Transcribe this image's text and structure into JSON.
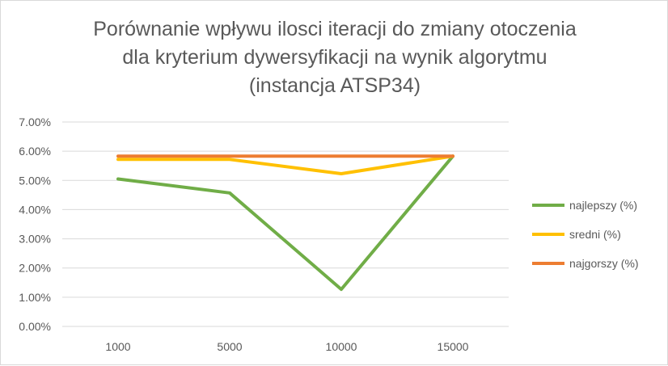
{
  "chart_data": {
    "type": "line",
    "title_lines": [
      "Porównanie wpływu ilosci iteracji do zmiany otoczenia",
      "dla kryterium dywersyfikacji na wynik algorytmu",
      "(instancja ATSP34)"
    ],
    "categories": [
      "1000",
      "5000",
      "10000",
      "15000"
    ],
    "y_ticks": [
      "0.00%",
      "1.00%",
      "2.00%",
      "3.00%",
      "4.00%",
      "5.00%",
      "6.00%",
      "7.00%"
    ],
    "ylim": [
      0,
      7
    ],
    "grid": true,
    "legend_position": "right",
    "series": [
      {
        "name": "najlepszy (%)",
        "color": "#70ad47",
        "values": [
          5.05,
          4.57,
          1.27,
          5.83
        ]
      },
      {
        "name": "sredni (%)",
        "color": "#ffc000",
        "values": [
          5.72,
          5.72,
          5.23,
          5.83
        ]
      },
      {
        "name": "najgorszy (%)",
        "color": "#ed7d31",
        "values": [
          5.83,
          5.83,
          5.83,
          5.83
        ]
      }
    ]
  }
}
